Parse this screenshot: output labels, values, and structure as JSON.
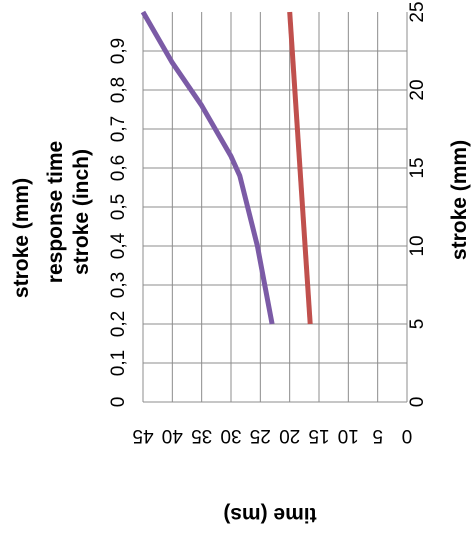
{
  "chart_data": {
    "type": "line",
    "orientation": "rotated-90-ccw",
    "grid": true,
    "x_axis": {
      "label": "time (ms)",
      "range": [
        0,
        45
      ],
      "ticks": [
        "0",
        "5",
        "10",
        "15",
        "20",
        "25",
        "30",
        "35",
        "40",
        "45"
      ],
      "reversed": true
    },
    "y_axis_left": {
      "labels": [
        "stroke (mm)",
        "response time",
        "stroke (inch)"
      ],
      "range": [
        0,
        1
      ],
      "ticks": [
        "0",
        "0,1",
        "0,2",
        "0,3",
        "0,4",
        "0,5",
        "0,6",
        "0,7",
        "0,8",
        "0,9"
      ]
    },
    "y_axis_right": {
      "label": "stroke (mm)",
      "range": [
        0,
        25
      ],
      "ticks": [
        "0",
        "5",
        "10",
        "15",
        "20",
        "25"
      ]
    },
    "series": [
      {
        "axis": "left",
        "color": "#7B5BA6",
        "points": [
          {
            "time": 23,
            "stroke": 0.2
          },
          {
            "time": 25.5,
            "stroke": 0.4
          },
          {
            "time": 28.5,
            "stroke": 0.58
          },
          {
            "time": 30,
            "stroke": 0.63
          },
          {
            "time": 35,
            "stroke": 0.76
          },
          {
            "time": 40,
            "stroke": 0.87
          },
          {
            "time": 45,
            "stroke": 1.0
          }
        ]
      },
      {
        "axis": "right",
        "color": "#C0504D",
        "points": [
          {
            "time": 16.5,
            "stroke": 5
          },
          {
            "time": 20,
            "stroke": 25
          }
        ]
      }
    ]
  }
}
